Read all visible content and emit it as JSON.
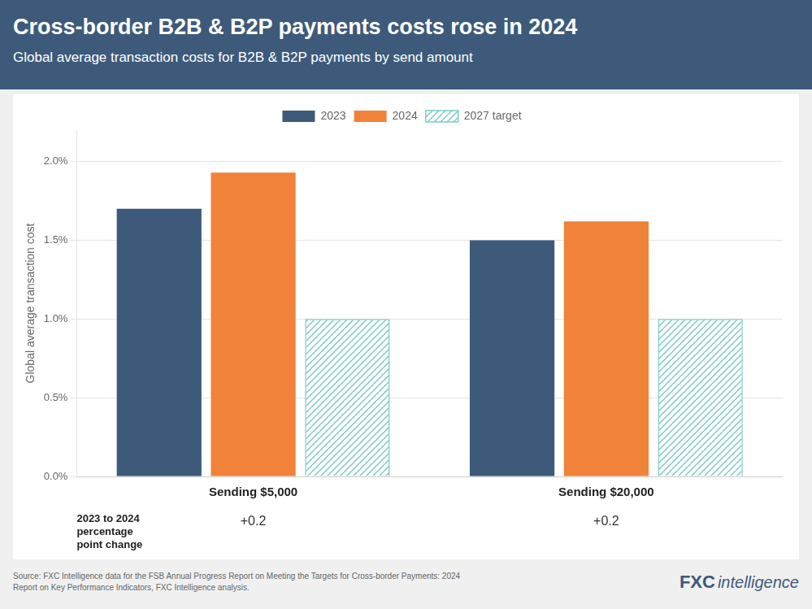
{
  "chart_data": {
    "type": "bar",
    "title": "Cross-border B2B & B2P payments costs rose in 2024",
    "subtitle": "Global average transaction costs for B2B & B2P payments by send amount",
    "categories": [
      "Sending $5,000",
      "Sending $20,000"
    ],
    "series": [
      {
        "name": "2023",
        "color": "#3d5a7a",
        "values": [
          0.017,
          0.015
        ]
      },
      {
        "name": "2024",
        "color": "#f0823a",
        "values": [
          0.0193,
          0.0162
        ]
      },
      {
        "name": "2027 target",
        "color": "#7ecac8",
        "marker": "hatch",
        "values": [
          0.01,
          0.01
        ]
      }
    ],
    "ylabel": "Global average transaction cost",
    "ylim": [
      0,
      0.022
    ],
    "yticks": [
      {
        "value": 0.0,
        "label": "0.0%"
      },
      {
        "value": 0.005,
        "label": "0.5%"
      },
      {
        "value": 0.01,
        "label": "1.0%"
      },
      {
        "value": 0.015,
        "label": "1.5%"
      },
      {
        "value": 0.02,
        "label": "2.0%"
      }
    ],
    "grid": true,
    "legend": "top",
    "annotations": {
      "change_label": "2023 to 2024\npercentage\npoint change",
      "percentage_changes": [
        "+0.2",
        "+0.2"
      ],
      "source": "Source: FXC Intelligence data for the FSB Annual Progress Report on Meeting the Targets for Cross-border Payments: 2024\nReport on Key Performance Indicators, FXC Intelligence analysis.",
      "logo": [
        "FXC",
        "intelligence"
      ]
    }
  }
}
